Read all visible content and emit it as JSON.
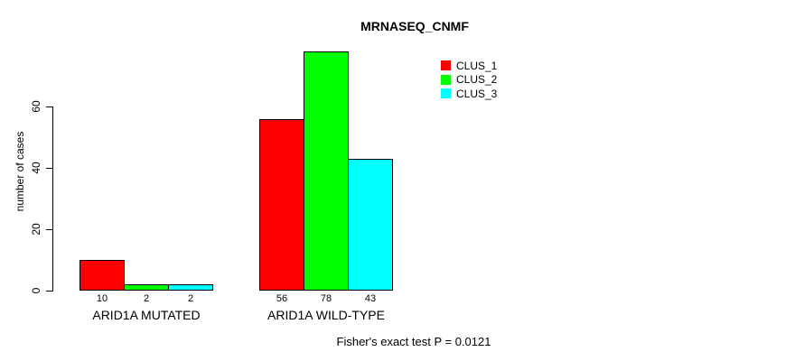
{
  "chart_data": {
    "type": "bar",
    "title": "MRNASEQ_CNMF",
    "ylabel": "number of cases",
    "xlabel": "",
    "categories": [
      "ARID1A MUTATED",
      "ARID1A WILD-TYPE"
    ],
    "series": [
      {
        "name": "CLUS_1",
        "color": "#ff0000",
        "values": [
          10,
          56
        ]
      },
      {
        "name": "CLUS_2",
        "color": "#00ff00",
        "values": [
          2,
          78
        ]
      },
      {
        "name": "CLUS_3",
        "color": "#00ffff",
        "values": [
          2,
          43
        ]
      }
    ],
    "value_labels_shown": true,
    "yticks": [
      0,
      20,
      40,
      60
    ],
    "ylim": [
      0,
      78
    ],
    "grid": false,
    "legend_position": "top-right",
    "annotation": "Fisher's exact test P = 0.0121"
  }
}
